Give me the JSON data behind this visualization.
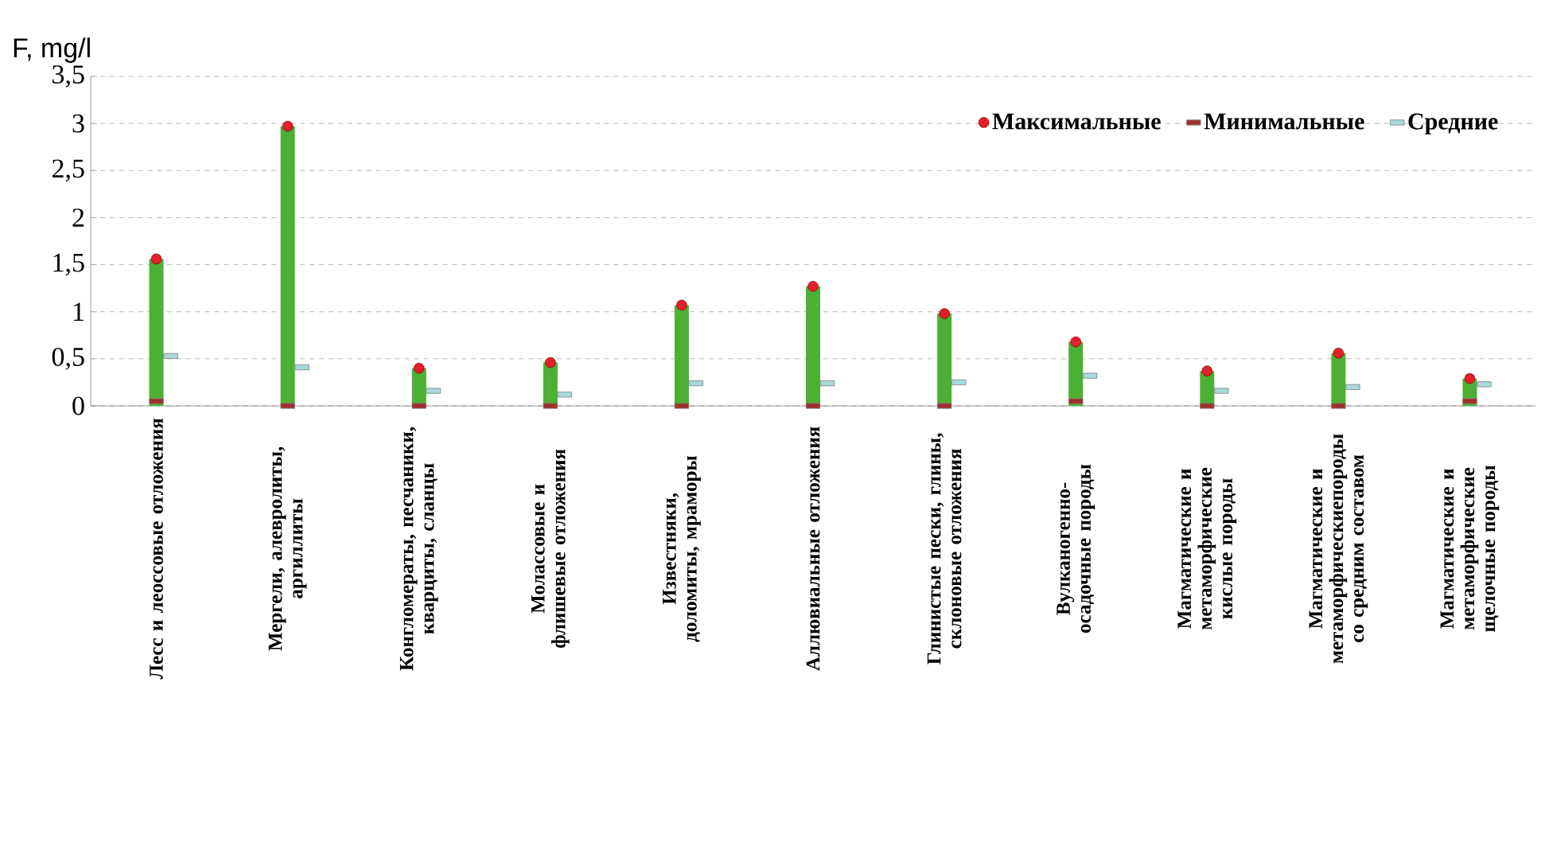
{
  "chart_data": {
    "type": "scatter",
    "ylabel": "F, mg/l",
    "categories": [
      "Лесс и леоссовые отложения",
      "Мергели, алевролиты, аргиллиты",
      "Конгломераты, песчаники, кварциты, сланцы",
      "Молассовые и флишевые отложения",
      "Известняки, доломиты, мраморы",
      "Аллювиальные отложения",
      "Глинистые пески, глины, склоновые отложения",
      "Вулканогенно-осадочные породы",
      "Магматические и метаморфические кислые породы",
      "Магматические и метаморфическиепороды со средним составом",
      "Магматические и метаморфические щелочные породы"
    ],
    "series": [
      {
        "type": "bar",
        "color": "#4cb034",
        "values": [
          1.56,
          2.97,
          0.4,
          0.46,
          1.07,
          1.27,
          0.98,
          0.68,
          0.37,
          0.56,
          0.29
        ]
      },
      {
        "name": "Максимальные",
        "color": "#e0202a",
        "marker": "circle",
        "values": [
          1.56,
          2.97,
          0.4,
          0.46,
          1.07,
          1.27,
          0.98,
          0.68,
          0.37,
          0.56,
          0.29
        ]
      },
      {
        "name": "Минимальные",
        "color": "#a0302a",
        "marker": "square",
        "values": [
          0.05,
          0,
          0,
          0,
          0,
          0,
          0,
          0.05,
          0,
          0,
          0.05
        ]
      },
      {
        "name": "Средние",
        "color": "#a8d8dc",
        "marker": "square",
        "values": [
          0.53,
          0.41,
          0.16,
          0.12,
          0.24,
          0.24,
          0.25,
          0.32,
          0.16,
          0.2,
          0.23
        ]
      }
    ],
    "ylim": [
      0,
      3.5
    ],
    "yticks": [
      0,
      {
        "value": 0.5,
        "label": "0,5"
      },
      1,
      {
        "value": 1.5,
        "label": "1,5"
      },
      2,
      {
        "value": 2.5,
        "label": "2,5"
      },
      3,
      {
        "value": 3.5,
        "label": "3,5"
      }
    ],
    "grid": "y",
    "legend": "top right"
  }
}
